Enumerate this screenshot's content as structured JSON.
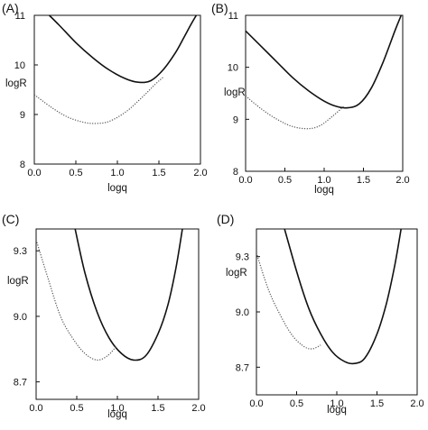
{
  "chart_data": [
    {
      "type": "line",
      "panel_label": "(A)",
      "xlabel": "logq",
      "ylabel": "logR",
      "xlim": [
        0,
        2.0
      ],
      "ylim": [
        8,
        11
      ],
      "xticks": [
        "0.0",
        "0.5",
        "1.0",
        "1.5",
        "2.0"
      ],
      "yticks": [
        "8",
        "9",
        "10",
        "11"
      ],
      "x_tick_values": [
        0,
        0.5,
        1.0,
        1.5,
        2.0
      ],
      "y_tick_values": [
        8,
        9,
        10,
        11
      ],
      "grid": false,
      "series": [
        {
          "style": "solid",
          "x": [
            0.18,
            0.3,
            0.5,
            0.7,
            0.9,
            1.1,
            1.25,
            1.4,
            1.55,
            1.7,
            1.8,
            1.88,
            1.95
          ],
          "values": [
            11.0,
            10.8,
            10.45,
            10.15,
            9.9,
            9.72,
            9.65,
            9.68,
            9.9,
            10.25,
            10.55,
            10.8,
            11.0
          ]
        },
        {
          "style": "dotted",
          "x": [
            0.0,
            0.2,
            0.4,
            0.6,
            0.75,
            0.9,
            1.1,
            1.3,
            1.45,
            1.55
          ],
          "values": [
            9.4,
            9.15,
            8.95,
            8.84,
            8.82,
            8.86,
            9.05,
            9.35,
            9.6,
            9.75
          ]
        }
      ]
    },
    {
      "type": "line",
      "panel_label": "(B)",
      "xlabel": "logq",
      "ylabel": "logR",
      "xlim": [
        0,
        2.0
      ],
      "ylim": [
        8,
        11
      ],
      "xticks": [
        "0.0",
        "0.5",
        "1.0",
        "1.5",
        "2.0"
      ],
      "yticks": [
        "8",
        "9",
        "10",
        "11"
      ],
      "x_tick_values": [
        0,
        0.5,
        1.0,
        1.5,
        2.0
      ],
      "y_tick_values": [
        8,
        9,
        10,
        11
      ],
      "grid": false,
      "series": [
        {
          "style": "solid",
          "x": [
            0.0,
            0.2,
            0.4,
            0.6,
            0.8,
            1.0,
            1.15,
            1.3,
            1.45,
            1.6,
            1.75,
            1.9,
            1.98
          ],
          "values": [
            10.7,
            10.4,
            10.1,
            9.8,
            9.55,
            9.35,
            9.25,
            9.22,
            9.3,
            9.6,
            10.1,
            10.7,
            11.0
          ]
        },
        {
          "style": "dotted",
          "x": [
            0.0,
            0.2,
            0.4,
            0.6,
            0.8,
            0.95,
            1.1,
            1.25
          ],
          "values": [
            9.45,
            9.2,
            9.0,
            8.86,
            8.82,
            8.88,
            9.05,
            9.25
          ]
        }
      ]
    },
    {
      "type": "line",
      "panel_label": "(C)",
      "xlabel": "logq",
      "ylabel": "logR",
      "xlim": [
        0,
        2.0
      ],
      "ylim": [
        8.62,
        9.4
      ],
      "xticks": [
        "0.0",
        "0.5",
        "1.0",
        "1.5",
        "2.0"
      ],
      "yticks": [
        "8.7",
        "9.0",
        "9.3"
      ],
      "x_tick_values": [
        0,
        0.5,
        1.0,
        1.5,
        2.0
      ],
      "y_tick_values": [
        8.7,
        9.0,
        9.3
      ],
      "grid": false,
      "series": [
        {
          "style": "solid",
          "x": [
            0.48,
            0.6,
            0.75,
            0.9,
            1.05,
            1.2,
            1.35,
            1.5,
            1.62,
            1.72,
            1.8
          ],
          "values": [
            9.4,
            9.2,
            9.02,
            8.9,
            8.83,
            8.8,
            8.82,
            8.92,
            9.05,
            9.22,
            9.4
          ]
        },
        {
          "style": "dotted",
          "x": [
            0.0,
            0.15,
            0.3,
            0.45,
            0.6,
            0.75,
            0.88,
            0.98
          ],
          "values": [
            9.35,
            9.17,
            9.0,
            8.9,
            8.83,
            8.8,
            8.82,
            8.86
          ]
        }
      ]
    },
    {
      "type": "line",
      "panel_label": "(D)",
      "xlabel": "logq",
      "ylabel": "logR",
      "xlim": [
        0,
        2.0
      ],
      "ylim": [
        8.55,
        9.45
      ],
      "xticks": [
        "0.0",
        "0.5",
        "1.0",
        "1.5",
        "2.0"
      ],
      "yticks": [
        "8.7",
        "9.0",
        "9.3"
      ],
      "x_tick_values": [
        0,
        0.5,
        1.0,
        1.5,
        2.0
      ],
      "y_tick_values": [
        8.7,
        9.0,
        9.3
      ],
      "grid": false,
      "series": [
        {
          "style": "solid",
          "x": [
            0.35,
            0.5,
            0.65,
            0.8,
            0.95,
            1.1,
            1.22,
            1.35,
            1.5,
            1.62,
            1.72,
            1.8
          ],
          "values": [
            9.45,
            9.22,
            9.02,
            8.88,
            8.78,
            8.73,
            8.72,
            8.75,
            8.88,
            9.05,
            9.25,
            9.45
          ]
        },
        {
          "style": "dotted",
          "x": [
            0.0,
            0.15,
            0.3,
            0.45,
            0.6,
            0.7,
            0.8
          ],
          "values": [
            9.32,
            9.12,
            8.98,
            8.87,
            8.81,
            8.8,
            8.82
          ]
        }
      ]
    }
  ]
}
